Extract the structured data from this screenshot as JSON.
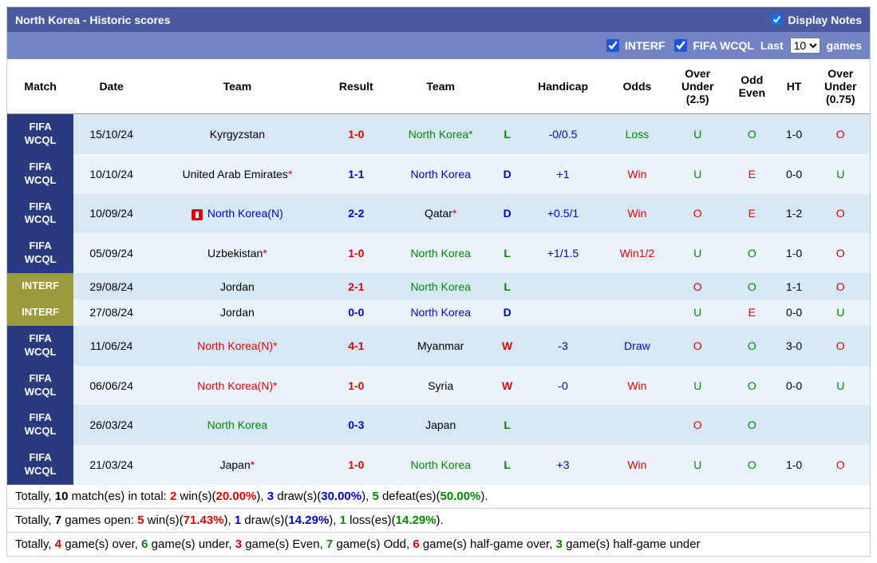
{
  "header": {
    "title": "North Korea - Historic scores",
    "display_notes": "Display Notes"
  },
  "filters": {
    "interf": "INTERF",
    "fifa": "FIFA WCQL",
    "last_prefix": "Last",
    "last_value": "10",
    "last_suffix": "games"
  },
  "columns": [
    "Match",
    "Date",
    "Team",
    "Result",
    "Team",
    "",
    "Handicap",
    "Odds",
    "Over Under (2.5)",
    "Odd Even",
    "HT",
    "Over Under (0.75)"
  ],
  "rows": [
    {
      "match": "FIFA WCQL",
      "mtype": "fifa",
      "date": "15/10/24",
      "team1": "Kyrgyzstan",
      "team1c": "black",
      "result": "1-0",
      "resultc": "red",
      "team2": "North Korea*",
      "team2c": "green",
      "wld": "L",
      "wldc": "green",
      "handicap": "-0/0.5",
      "handicapc": "blue",
      "odds": "Loss",
      "oddsc": "green",
      "ou25": "U",
      "ou25c": "green",
      "oe": "O",
      "oec": "green",
      "ht": "1-0",
      "ou075": "O",
      "ou075c": "red"
    },
    {
      "match": "FIFA WCQL",
      "mtype": "fifa",
      "date": "10/10/24",
      "team1": "United Arab Emirates*",
      "team1c": "black",
      "team1star": true,
      "result": "1-1",
      "resultc": "blue",
      "team2": "North Korea",
      "team2c": "blue",
      "wld": "D",
      "wldc": "blue",
      "handicap": "+1",
      "handicapc": "blue",
      "odds": "Win",
      "oddsc": "red",
      "ou25": "U",
      "ou25c": "green",
      "oe": "E",
      "oec": "red",
      "ht": "0-0",
      "ou075": "U",
      "ou075c": "green"
    },
    {
      "match": "FIFA WCQL",
      "mtype": "fifa",
      "date": "10/09/24",
      "team1": "North Korea(N)",
      "team1c": "blue",
      "icon": true,
      "result": "2-2",
      "resultc": "blue",
      "team2": "Qatar*",
      "team2c": "black",
      "team2star": true,
      "wld": "D",
      "wldc": "blue",
      "handicap": "+0.5/1",
      "handicapc": "blue",
      "odds": "Win",
      "oddsc": "red",
      "ou25": "O",
      "ou25c": "red",
      "oe": "E",
      "oec": "red",
      "ht": "1-2",
      "ou075": "O",
      "ou075c": "red"
    },
    {
      "match": "FIFA WCQL",
      "mtype": "fifa",
      "date": "05/09/24",
      "team1": "Uzbekistan*",
      "team1c": "black",
      "team1star": true,
      "result": "1-0",
      "resultc": "red",
      "team2": "North Korea",
      "team2c": "green",
      "wld": "L",
      "wldc": "green",
      "handicap": "+1/1.5",
      "handicapc": "blue",
      "odds": "Win1/2",
      "oddsc": "red",
      "ou25": "U",
      "ou25c": "green",
      "oe": "O",
      "oec": "green",
      "ht": "1-0",
      "ou075": "O",
      "ou075c": "red"
    },
    {
      "match": "INTERF",
      "mtype": "interf",
      "date": "29/08/24",
      "team1": "Jordan",
      "team1c": "black",
      "result": "2-1",
      "resultc": "red",
      "team2": "North Korea",
      "team2c": "green",
      "wld": "L",
      "wldc": "green",
      "handicap": "",
      "handicapc": "",
      "odds": "",
      "oddsc": "",
      "ou25": "O",
      "ou25c": "red",
      "oe": "O",
      "oec": "green",
      "ht": "1-1",
      "ou075": "O",
      "ou075c": "red"
    },
    {
      "match": "INTERF",
      "mtype": "interf",
      "date": "27/08/24",
      "team1": "Jordan",
      "team1c": "black",
      "result": "0-0",
      "resultc": "blue",
      "team2": "North Korea",
      "team2c": "blue",
      "wld": "D",
      "wldc": "blue",
      "handicap": "",
      "handicapc": "",
      "odds": "",
      "oddsc": "",
      "ou25": "U",
      "ou25c": "green",
      "oe": "E",
      "oec": "red",
      "ht": "0-0",
      "ou075": "U",
      "ou075c": "green"
    },
    {
      "match": "FIFA WCQL",
      "mtype": "fifa",
      "date": "11/06/24",
      "team1": "North Korea(N)*",
      "team1c": "red",
      "result": "4-1",
      "resultc": "red",
      "team2": "Myanmar",
      "team2c": "black",
      "wld": "W",
      "wldc": "red",
      "handicap": "-3",
      "handicapc": "blue",
      "odds": "Draw",
      "oddsc": "blue",
      "ou25": "O",
      "ou25c": "red",
      "oe": "O",
      "oec": "green",
      "ht": "3-0",
      "ou075": "O",
      "ou075c": "red"
    },
    {
      "match": "FIFA WCQL",
      "mtype": "fifa",
      "date": "06/06/24",
      "team1": "North Korea(N)*",
      "team1c": "red",
      "result": "1-0",
      "resultc": "red",
      "team2": "Syria",
      "team2c": "black",
      "wld": "W",
      "wldc": "red",
      "handicap": "-0",
      "handicapc": "blue",
      "odds": "Win",
      "oddsc": "red",
      "ou25": "U",
      "ou25c": "green",
      "oe": "O",
      "oec": "green",
      "ht": "0-0",
      "ou075": "U",
      "ou075c": "green"
    },
    {
      "match": "FIFA WCQL",
      "mtype": "fifa",
      "date": "26/03/24",
      "team1": "North Korea",
      "team1c": "green",
      "result": "0-3",
      "resultc": "blue",
      "team2": "Japan",
      "team2c": "black",
      "wld": "L",
      "wldc": "green",
      "handicap": "",
      "handicapc": "",
      "odds": "",
      "oddsc": "",
      "ou25": "O",
      "ou25c": "red",
      "oe": "O",
      "oec": "green",
      "ht": "",
      "ou075": "",
      "ou075c": ""
    },
    {
      "match": "FIFA WCQL",
      "mtype": "fifa",
      "date": "21/03/24",
      "team1": "Japan*",
      "team1c": "black",
      "team1star": true,
      "result": "1-0",
      "resultc": "red",
      "team2": "North Korea",
      "team2c": "green",
      "wld": "L",
      "wldc": "green",
      "handicap": "+3",
      "handicapc": "blue",
      "odds": "Win",
      "oddsc": "red",
      "ou25": "U",
      "ou25c": "green",
      "oe": "O",
      "oec": "green",
      "ht": "1-0",
      "ou075": "O",
      "ou075c": "red"
    }
  ],
  "summary1": {
    "p1": "Totally, ",
    "p2": "10",
    "p3": " match(es) in total: ",
    "p4": "2",
    "p5": " win(s)(",
    "p6": "20.00%",
    "p7": "), ",
    "p8": "3",
    "p9": " draw(s)(",
    "p10": "30.00%",
    "p11": "), ",
    "p12": "5",
    "p13": " defeat(es)(",
    "p14": "50.00%",
    "p15": ")."
  },
  "summary2": {
    "p1": "Totally, ",
    "p2": "7",
    "p3": " games open: ",
    "p4": "5",
    "p5": " win(s)(",
    "p6": "71.43%",
    "p7": "), ",
    "p8": "1",
    "p9": " draw(s)(",
    "p10": "14.29%",
    "p11": "), ",
    "p12": "1",
    "p13": " loss(es)(",
    "p14": "14.29%",
    "p15": ")."
  },
  "summary3": {
    "p1": "Totally, ",
    "p2": "4",
    "p3": " game(s) over, ",
    "p4": "6",
    "p5": " game(s) under, ",
    "p6": "3",
    "p7": " game(s) Even, ",
    "p8": "7",
    "p9": " game(s) Odd, ",
    "p10": "6",
    "p11": " game(s) half-game over, ",
    "p12": "3",
    "p13": " game(s) half-game under"
  }
}
